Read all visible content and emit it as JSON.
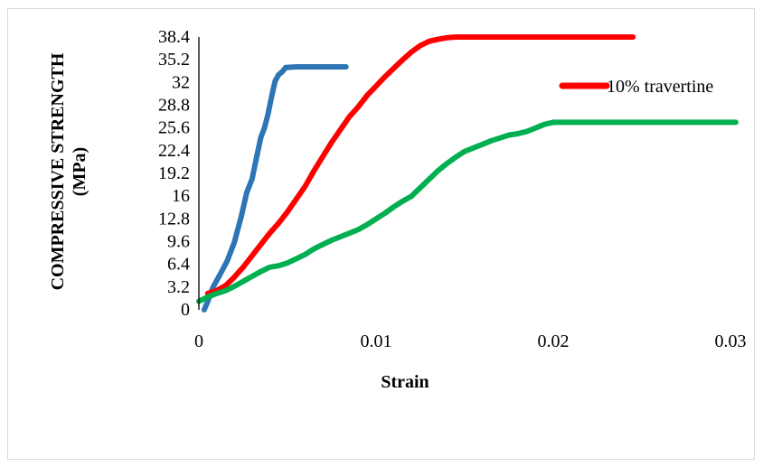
{
  "chart_data": {
    "type": "line",
    "title": "",
    "xlabel": "Strain",
    "ylabel": [
      "COMPRESSIVE STRENGTH",
      "(MPa)"
    ],
    "xlim": [
      0,
      0.03
    ],
    "ylim": [
      0,
      38.4
    ],
    "x_ticks": [
      "0",
      "0.01",
      "0.02",
      "0.03"
    ],
    "x_tick_values": [
      0,
      0.01,
      0.02,
      0.03
    ],
    "y_ticks": [
      "0",
      "3.2",
      "6.4",
      "9.6",
      "12.8",
      "16",
      "19.2",
      "22.4",
      "25.6",
      "28.8",
      "32",
      "35.2",
      "38.4"
    ],
    "y_tick_values": [
      0,
      3.2,
      6.4,
      9.6,
      12.8,
      16,
      19.2,
      22.4,
      25.6,
      28.8,
      32,
      35.2,
      38.4
    ],
    "grid": false,
    "legend_position": "top-right",
    "series": [
      {
        "color": "#2e75b6",
        "points": [
          [
            0.0003,
            0
          ],
          [
            0.0005,
            1.2
          ],
          [
            0.0008,
            3.2
          ],
          [
            0.0012,
            5.0
          ],
          [
            0.0016,
            6.9
          ],
          [
            0.002,
            9.5
          ],
          [
            0.0024,
            13.2
          ],
          [
            0.0027,
            16.5
          ],
          [
            0.003,
            18.4
          ],
          [
            0.0033,
            22.0
          ],
          [
            0.0035,
            24.3
          ],
          [
            0.0037,
            25.6
          ],
          [
            0.0039,
            27.5
          ],
          [
            0.0041,
            30.0
          ],
          [
            0.0043,
            32.2
          ],
          [
            0.0045,
            33.1
          ],
          [
            0.0047,
            33.5
          ],
          [
            0.0049,
            34.1
          ],
          [
            0.0055,
            34.2
          ],
          [
            0.0065,
            34.2
          ],
          [
            0.0083,
            34.2
          ]
        ]
      },
      {
        "name": "10% travertine",
        "color": "#ff0000",
        "points": [
          [
            0.0005,
            2.3
          ],
          [
            0.001,
            2.7
          ],
          [
            0.0015,
            3.4
          ],
          [
            0.002,
            4.6
          ],
          [
            0.0025,
            6.0
          ],
          [
            0.003,
            7.6
          ],
          [
            0.0035,
            9.2
          ],
          [
            0.004,
            10.8
          ],
          [
            0.0045,
            12.2
          ],
          [
            0.005,
            13.8
          ],
          [
            0.0055,
            15.6
          ],
          [
            0.006,
            17.4
          ],
          [
            0.0065,
            19.6
          ],
          [
            0.007,
            21.6
          ],
          [
            0.0075,
            23.6
          ],
          [
            0.008,
            25.4
          ],
          [
            0.0085,
            27.2
          ],
          [
            0.009,
            28.6
          ],
          [
            0.0095,
            30.2
          ],
          [
            0.01,
            31.5
          ],
          [
            0.0105,
            32.8
          ],
          [
            0.011,
            34.0
          ],
          [
            0.0115,
            35.2
          ],
          [
            0.012,
            36.3
          ],
          [
            0.0125,
            37.2
          ],
          [
            0.013,
            37.8
          ],
          [
            0.0135,
            38.1
          ],
          [
            0.014,
            38.3
          ],
          [
            0.0145,
            38.4
          ],
          [
            0.015,
            38.4
          ],
          [
            0.018,
            38.4
          ],
          [
            0.0245,
            38.4
          ]
        ]
      },
      {
        "color": "#00b050",
        "points": [
          [
            0,
            1.2
          ],
          [
            0.0005,
            1.8
          ],
          [
            0.001,
            2.3
          ],
          [
            0.0015,
            2.7
          ],
          [
            0.002,
            3.3
          ],
          [
            0.0025,
            4.0
          ],
          [
            0.003,
            4.7
          ],
          [
            0.0035,
            5.4
          ],
          [
            0.004,
            6.0
          ],
          [
            0.0045,
            6.2
          ],
          [
            0.005,
            6.6
          ],
          [
            0.0055,
            7.2
          ],
          [
            0.006,
            7.8
          ],
          [
            0.0065,
            8.6
          ],
          [
            0.007,
            9.2
          ],
          [
            0.0075,
            9.8
          ],
          [
            0.008,
            10.3
          ],
          [
            0.0085,
            10.8
          ],
          [
            0.009,
            11.3
          ],
          [
            0.0095,
            12.0
          ],
          [
            0.01,
            12.8
          ],
          [
            0.0105,
            13.6
          ],
          [
            0.011,
            14.5
          ],
          [
            0.0115,
            15.3
          ],
          [
            0.012,
            16.0
          ],
          [
            0.0125,
            17.2
          ],
          [
            0.013,
            18.4
          ],
          [
            0.0135,
            19.6
          ],
          [
            0.014,
            20.6
          ],
          [
            0.0145,
            21.5
          ],
          [
            0.015,
            22.3
          ],
          [
            0.0155,
            22.8
          ],
          [
            0.016,
            23.3
          ],
          [
            0.0165,
            23.8
          ],
          [
            0.017,
            24.2
          ],
          [
            0.0175,
            24.6
          ],
          [
            0.018,
            24.8
          ],
          [
            0.0185,
            25.1
          ],
          [
            0.019,
            25.6
          ],
          [
            0.0195,
            26.1
          ],
          [
            0.02,
            26.4
          ],
          [
            0.021,
            26.4
          ],
          [
            0.025,
            26.4
          ],
          [
            0.0303,
            26.4
          ]
        ]
      }
    ]
  }
}
